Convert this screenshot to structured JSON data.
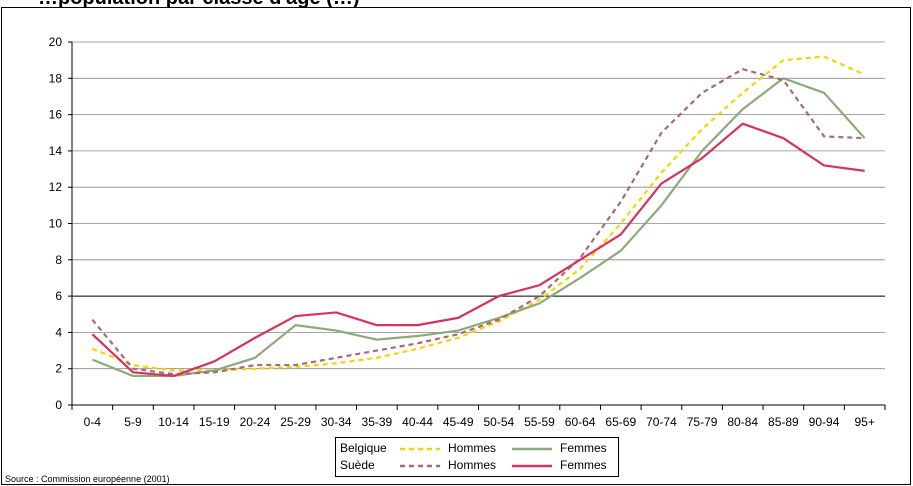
{
  "chart_data": {
    "type": "line",
    "title": "…population par classe d'âge (…)",
    "categories": [
      "0-4",
      "5-9",
      "10-14",
      "15-19",
      "20-24",
      "25-29",
      "30-34",
      "35-39",
      "40-44",
      "45-49",
      "50-54",
      "55-59",
      "60-64",
      "65-69",
      "70-74",
      "75-79",
      "80-84",
      "85-89",
      "90-94",
      "95+"
    ],
    "ylim": [
      0,
      20
    ],
    "yticks": [
      0,
      2,
      4,
      6,
      8,
      10,
      12,
      14,
      16,
      18,
      20
    ],
    "grid": true,
    "series": [
      {
        "group": "Belgique",
        "name": "Hommes",
        "color": "#f5d400",
        "dash": true,
        "values": [
          3.1,
          2.2,
          1.9,
          1.9,
          2.0,
          2.1,
          2.3,
          2.6,
          3.1,
          3.7,
          4.6,
          5.8,
          7.5,
          10.0,
          12.8,
          15.2,
          17.2,
          19.0,
          19.2,
          18.2
        ]
      },
      {
        "group": "Belgique",
        "name": "Femmes",
        "color": "#8aab78",
        "dash": false,
        "values": [
          2.5,
          1.6,
          1.6,
          1.9,
          2.6,
          4.4,
          4.1,
          3.6,
          3.8,
          4.1,
          4.8,
          5.6,
          7.0,
          8.5,
          11.0,
          14.0,
          16.3,
          18.0,
          17.2,
          14.7
        ]
      },
      {
        "group": "Suède",
        "name": "Hommes",
        "color": "#a86878",
        "dash": true,
        "values": [
          4.7,
          2.0,
          1.7,
          1.8,
          2.2,
          2.2,
          2.6,
          3.0,
          3.4,
          3.9,
          4.7,
          6.0,
          8.1,
          11.2,
          15.0,
          17.2,
          18.5,
          17.9,
          14.8,
          14.7
        ]
      },
      {
        "group": "Suède",
        "name": "Femmes",
        "color": "#d6335c",
        "dash": false,
        "values": [
          3.9,
          1.8,
          1.6,
          2.4,
          3.7,
          4.9,
          5.1,
          4.4,
          4.4,
          4.8,
          6.0,
          6.6,
          8.0,
          9.4,
          12.2,
          13.6,
          15.5,
          14.7,
          13.2,
          12.9
        ]
      }
    ],
    "legend": {
      "position": "bottom",
      "rows": [
        {
          "group": "Belgique",
          "items": [
            "Hommes",
            "Femmes"
          ]
        },
        {
          "group": "Suède",
          "items": [
            "Hommes",
            "Femmes"
          ]
        }
      ]
    }
  },
  "source": "Source : Commission européenne (2001)"
}
